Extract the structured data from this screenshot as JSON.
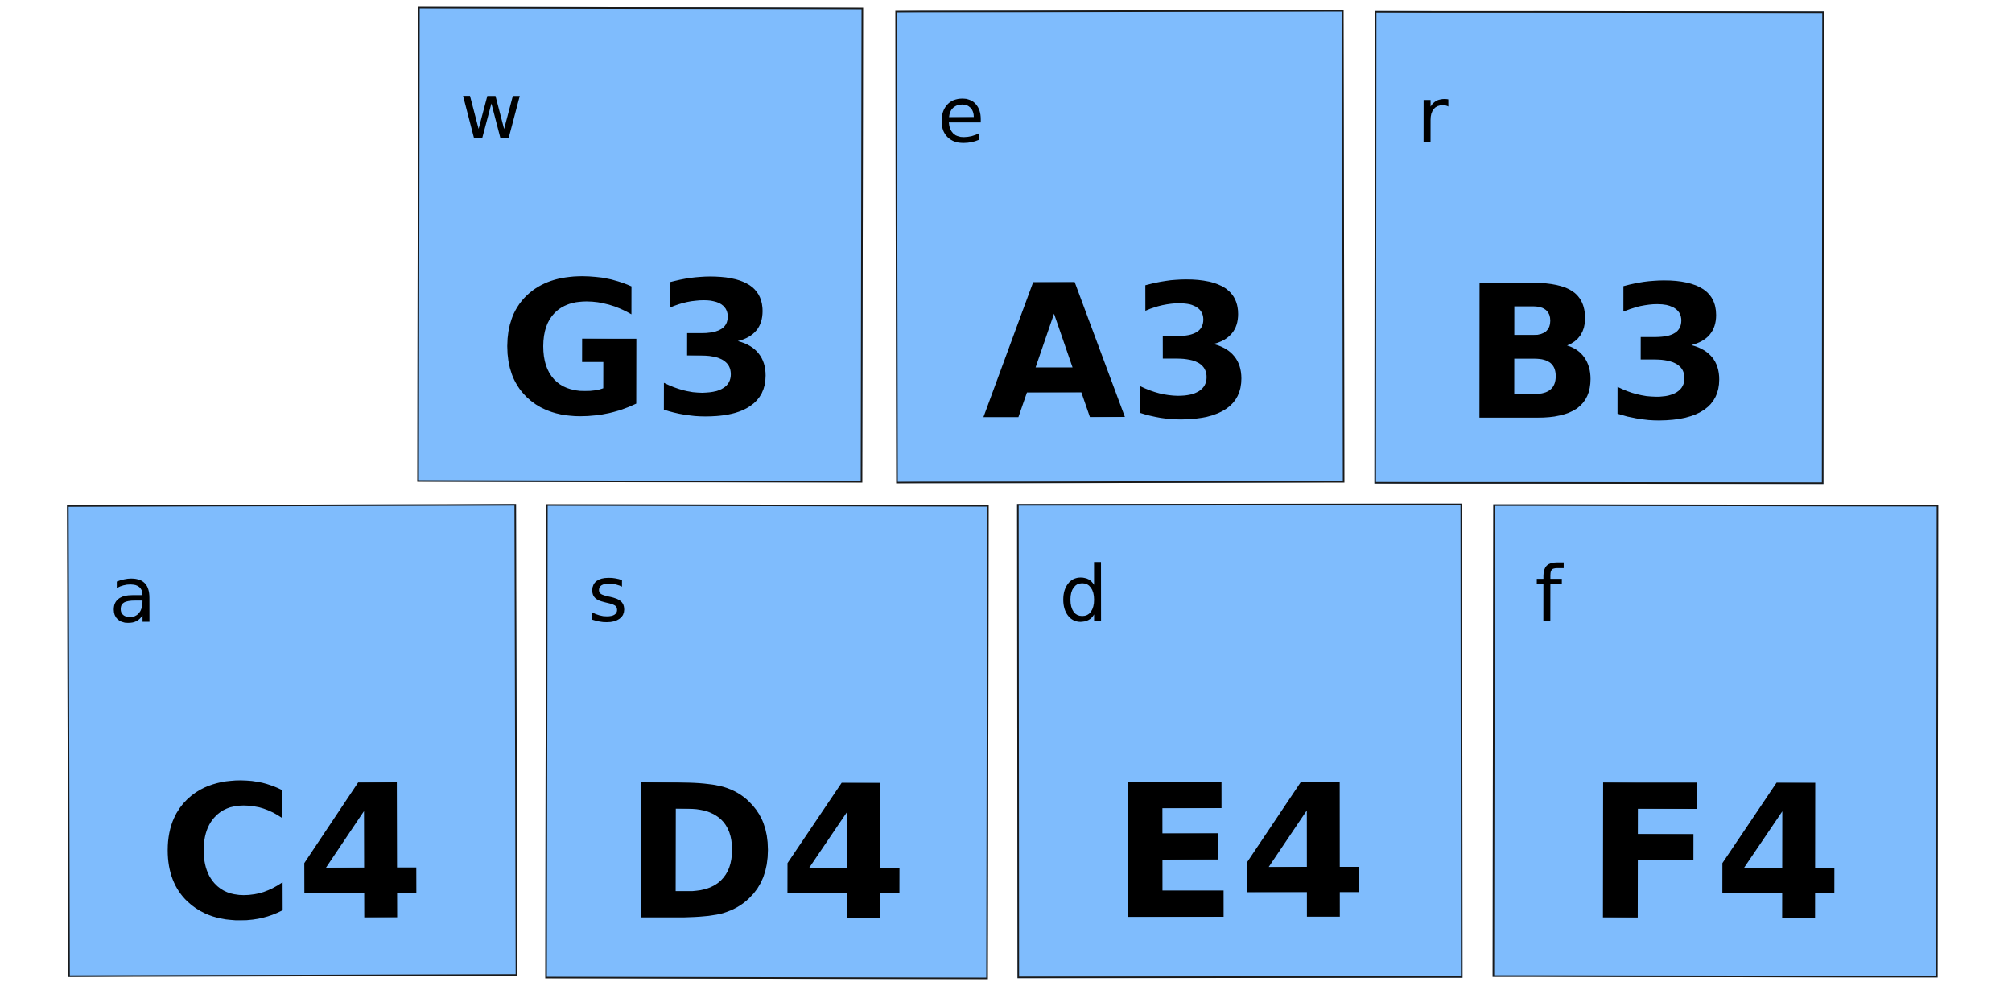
{
  "colors": {
    "key_fill": "#7fbcfd",
    "key_border": "#1a1a1a",
    "text": "#000000",
    "background": "#ffffff"
  },
  "keys": [
    {
      "id": "key-w",
      "letter": "w",
      "note": "G3"
    },
    {
      "id": "key-e",
      "letter": "e",
      "note": "A3"
    },
    {
      "id": "key-r",
      "letter": "r",
      "note": "B3"
    },
    {
      "id": "key-a",
      "letter": "a",
      "note": "C4"
    },
    {
      "id": "key-s",
      "letter": "s",
      "note": "D4"
    },
    {
      "id": "key-d",
      "letter": "d",
      "note": "E4"
    },
    {
      "id": "key-f",
      "letter": "f",
      "note": "F4"
    }
  ]
}
